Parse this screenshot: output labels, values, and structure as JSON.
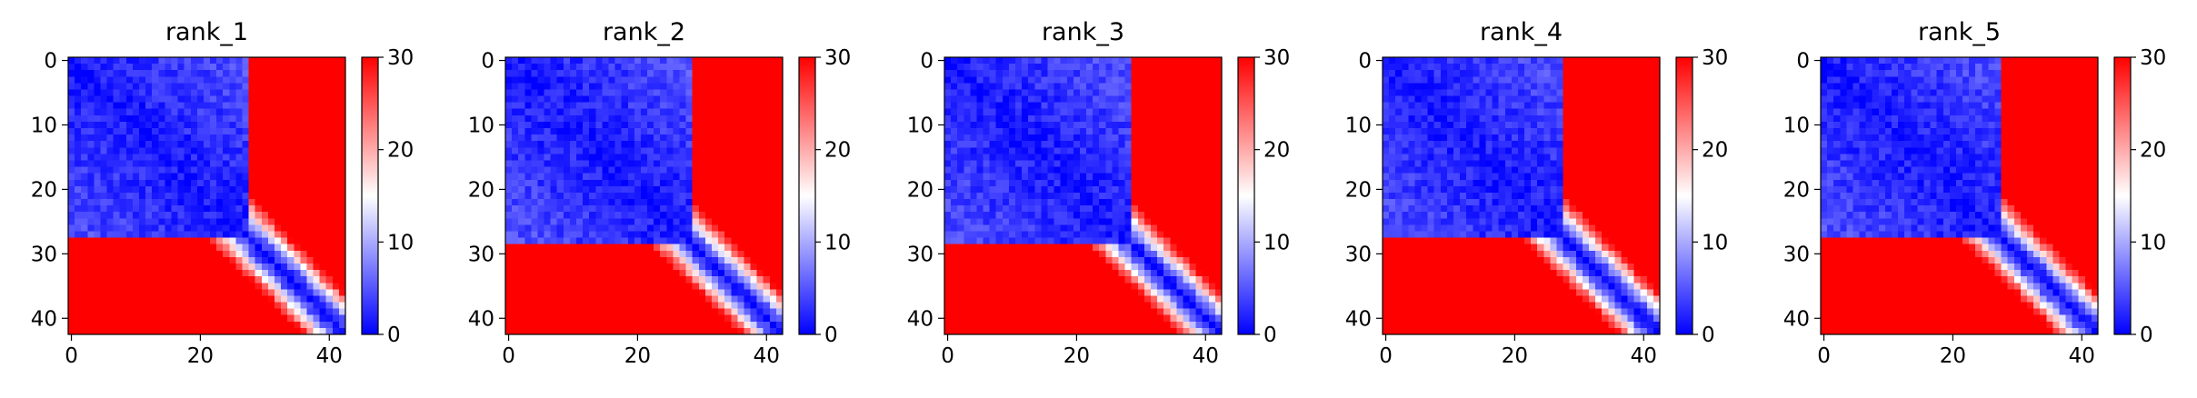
{
  "chart_data": [
    {
      "type": "heatmap",
      "title": "rank_1",
      "rows": 43,
      "cols": 43,
      "x_ticks": [
        0,
        20,
        40
      ],
      "y_ticks": [
        0,
        10,
        20,
        30,
        40
      ],
      "xlim": [
        0,
        42
      ],
      "ylim": [
        42,
        0
      ],
      "colorbar": {
        "min": 0,
        "max": 30,
        "ticks": [
          0,
          10,
          20,
          30
        ],
        "colormap": [
          "#0000ff",
          "#ffffff",
          "#ff0000"
        ]
      },
      "pattern": {
        "domain_boundary": 28,
        "band_width": 3.5
      }
    },
    {
      "type": "heatmap",
      "title": "rank_2",
      "rows": 43,
      "cols": 43,
      "x_ticks": [
        0,
        20,
        40
      ],
      "y_ticks": [
        0,
        10,
        20,
        30,
        40
      ],
      "xlim": [
        0,
        42
      ],
      "ylim": [
        42,
        0
      ],
      "colorbar": {
        "min": 0,
        "max": 30,
        "ticks": [
          0,
          10,
          20,
          30
        ],
        "colormap": [
          "#0000ff",
          "#ffffff",
          "#ff0000"
        ]
      },
      "pattern": {
        "domain_boundary": 29,
        "band_width": 3.5
      }
    },
    {
      "type": "heatmap",
      "title": "rank_3",
      "rows": 43,
      "cols": 43,
      "x_ticks": [
        0,
        20,
        40
      ],
      "y_ticks": [
        0,
        10,
        20,
        30,
        40
      ],
      "xlim": [
        0,
        42
      ],
      "ylim": [
        42,
        0
      ],
      "colorbar": {
        "min": 0,
        "max": 30,
        "ticks": [
          0,
          10,
          20,
          30
        ],
        "colormap": [
          "#0000ff",
          "#ffffff",
          "#ff0000"
        ]
      },
      "pattern": {
        "domain_boundary": 29,
        "band_width": 3.5
      }
    },
    {
      "type": "heatmap",
      "title": "rank_4",
      "rows": 43,
      "cols": 43,
      "x_ticks": [
        0,
        20,
        40
      ],
      "y_ticks": [
        0,
        10,
        20,
        30,
        40
      ],
      "xlim": [
        0,
        42
      ],
      "ylim": [
        42,
        0
      ],
      "colorbar": {
        "min": 0,
        "max": 30,
        "ticks": [
          0,
          10,
          20,
          30
        ],
        "colormap": [
          "#0000ff",
          "#ffffff",
          "#ff0000"
        ]
      },
      "pattern": {
        "domain_boundary": 28,
        "band_width": 3.5
      }
    },
    {
      "type": "heatmap",
      "title": "rank_5",
      "rows": 43,
      "cols": 43,
      "x_ticks": [
        0,
        20,
        40
      ],
      "y_ticks": [
        0,
        10,
        20,
        30,
        40
      ],
      "xlim": [
        0,
        42
      ],
      "ylim": [
        42,
        0
      ],
      "colorbar": {
        "min": 0,
        "max": 30,
        "ticks": [
          0,
          10,
          20,
          30
        ],
        "colormap": [
          "#0000ff",
          "#ffffff",
          "#ff0000"
        ]
      },
      "pattern": {
        "domain_boundary": 28,
        "band_width": 3.5
      }
    }
  ]
}
